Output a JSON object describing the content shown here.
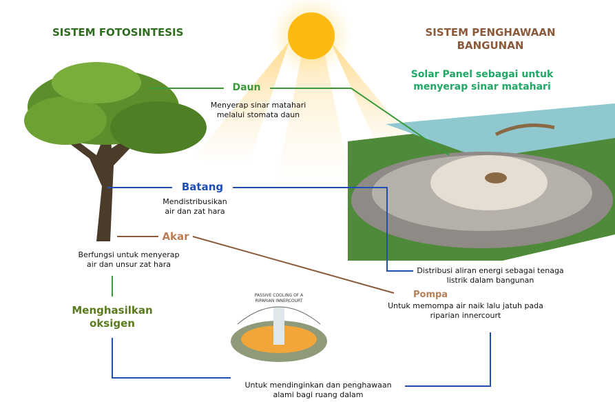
{
  "left_title": "SISTEM FOTOSINTESIS",
  "right_title": [
    "SISTEM PENGHAWAAN",
    "BANGUNAN"
  ],
  "solar_panel": [
    "Solar Panel sebagai untuk",
    "menyerap sinar matahari"
  ],
  "daun": {
    "label": "Daun",
    "desc": [
      "Menyerap sinar matahari",
      "melalui stomata daun"
    ]
  },
  "batang": {
    "label": "Batang",
    "desc": [
      "Mendistribusikan",
      "air dan zat hara"
    ]
  },
  "akar": {
    "label": "Akar",
    "desc": [
      "Berfungsi untuk menyerap",
      "air  dan unsur zat hara"
    ]
  },
  "oksigen": [
    "Menghasilkan",
    "oksigen"
  ],
  "distribusi": [
    "Distribusi aliran energi sebagai tenaga",
    "listrik dalam bangunan"
  ],
  "pompa": {
    "label": "Pompa",
    "desc": [
      "Untuk memompa air naik lalu jatuh pada",
      "riparian innercourt"
    ]
  },
  "passive_cooling": [
    "PASSIVE COOLING OF A",
    "RIPARIAN INNERCOURT"
  ],
  "pendinginan": [
    "Untuk mendinginkan dan penghawaan",
    "alami bagi ruang dalam"
  ]
}
